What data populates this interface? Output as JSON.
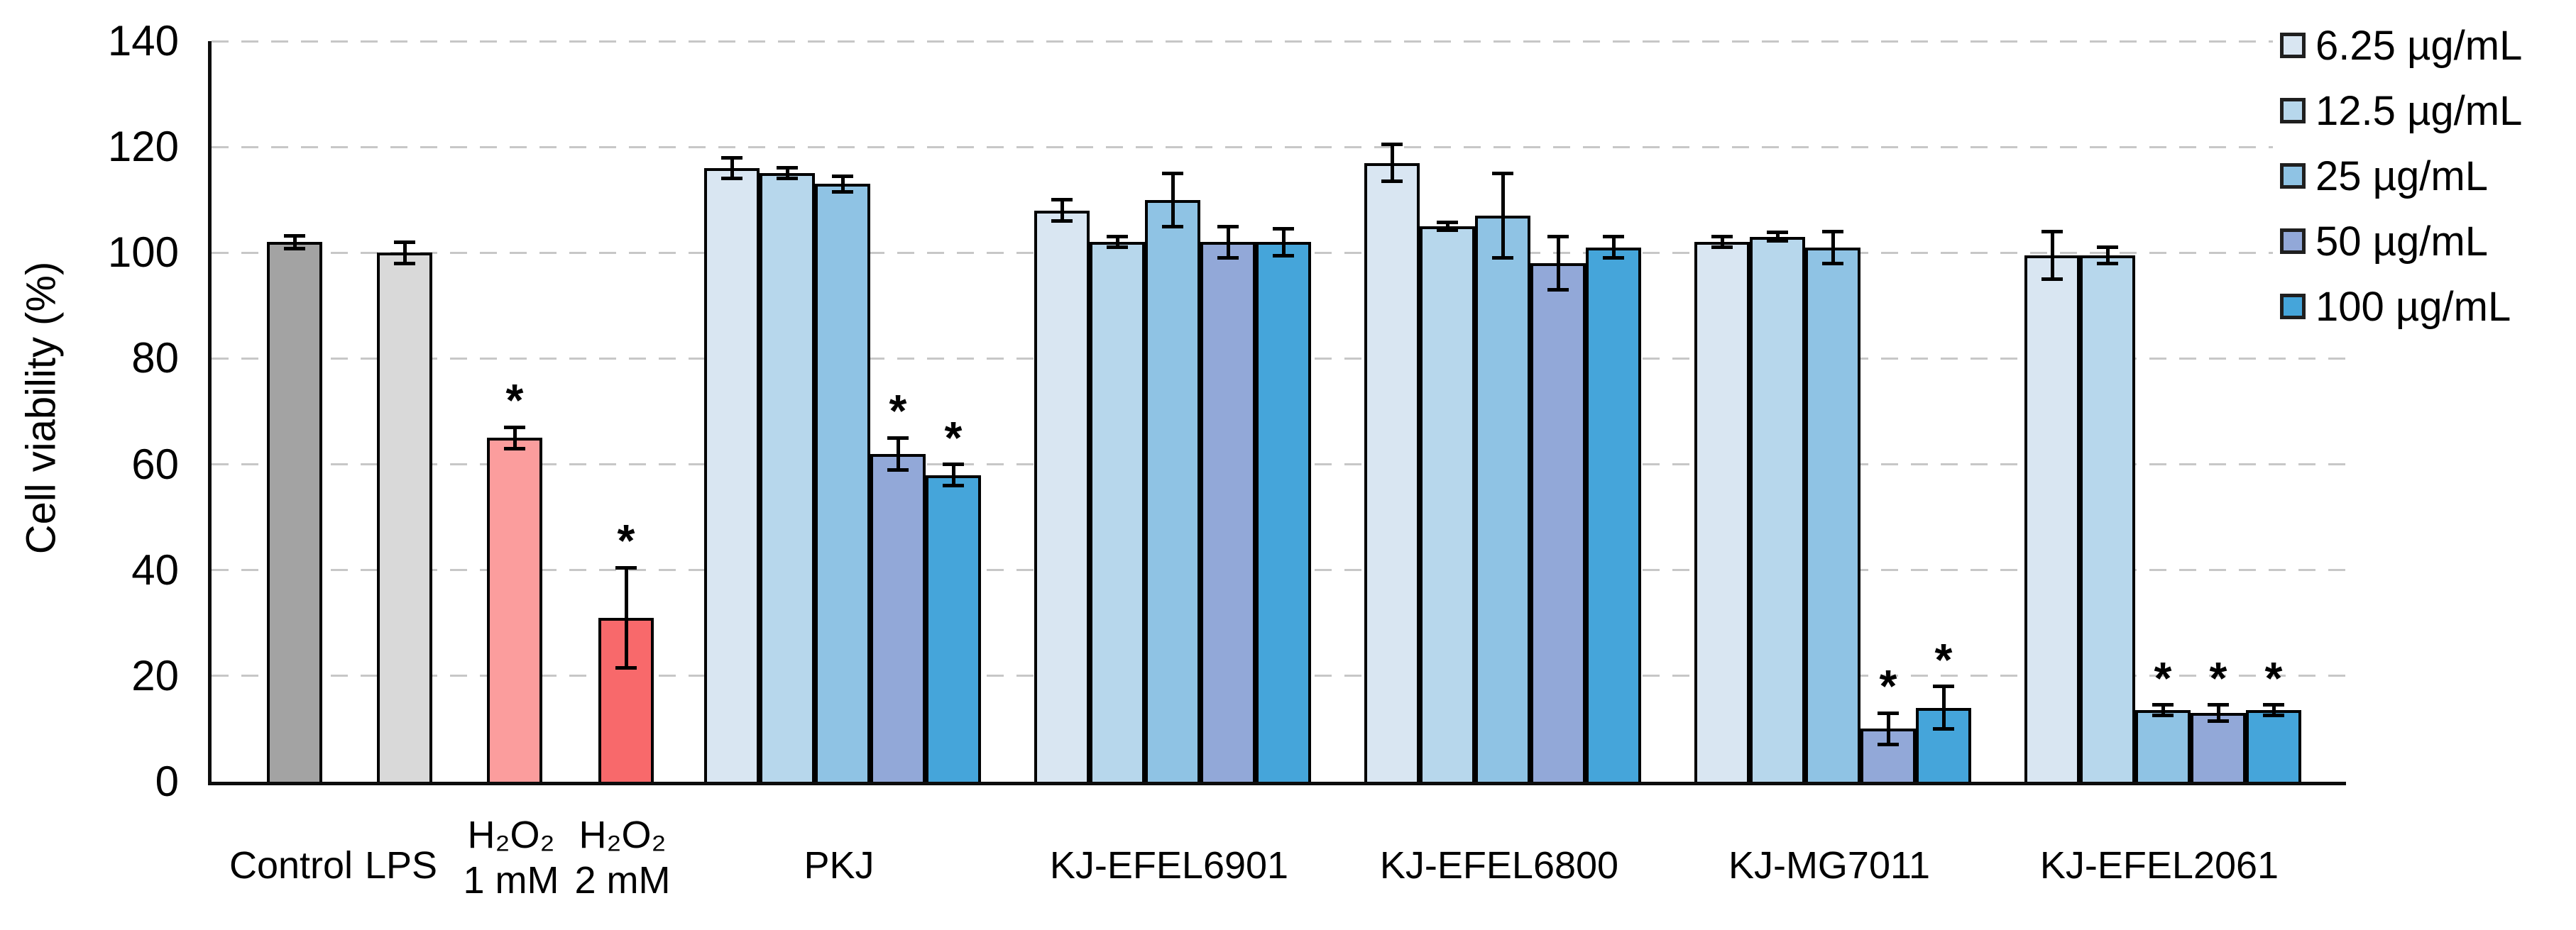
{
  "figure": {
    "background": "#ffffff"
  },
  "chart_data": {
    "type": "bar",
    "title": "",
    "xlabel": "",
    "ylabel": "Cell viability (%)",
    "ylim": [
      0,
      140
    ],
    "yticks": [
      0,
      20,
      40,
      60,
      80,
      100,
      120,
      140
    ],
    "grid": "horizontal-dashed",
    "gridline_color": "#c7c7c7",
    "legend_position": "top-right",
    "significance_marker": "*",
    "series": [
      {
        "name": "6.25 µg/mL",
        "color": "#d9e6f2"
      },
      {
        "name": "12.5 µg/mL",
        "color": "#b7d7ec"
      },
      {
        "name": "25 µg/mL",
        "color": "#8fc3e4"
      },
      {
        "name": "50 µg/mL",
        "color": "#92a8d8"
      },
      {
        "name": "100 µg/mL",
        "color": "#45a5da"
      }
    ],
    "groups": [
      {
        "label": "Control",
        "bars": [
          {
            "series": "Control",
            "value": 102,
            "error": 1.2,
            "significant": false,
            "color": "#a3a3a3"
          }
        ]
      },
      {
        "label": "LPS",
        "bars": [
          {
            "series": "LPS",
            "value": 100,
            "error": 2,
            "significant": false,
            "color": "#d9d9d9"
          }
        ]
      },
      {
        "label": "H₂O₂\n1 mM",
        "bars": [
          {
            "series": "H₂O₂ 1 mM",
            "value": 65,
            "error": 2,
            "significant": true,
            "color": "#fb9d9d"
          }
        ]
      },
      {
        "label": "H₂O₂\n2 mM",
        "bars": [
          {
            "series": "H₂O₂ 2 mM",
            "value": 31,
            "error": 9.5,
            "significant": true,
            "color": "#f8696b"
          }
        ]
      },
      {
        "label": "PKJ",
        "bars": [
          {
            "series": "6.25 µg/mL",
            "value": 116,
            "error": 2,
            "significant": false
          },
          {
            "series": "12.5 µg/mL",
            "value": 115,
            "error": 1,
            "significant": false
          },
          {
            "series": "25 µg/mL",
            "value": 113,
            "error": 1.5,
            "significant": false
          },
          {
            "series": "50 µg/mL",
            "value": 62,
            "error": 3,
            "significant": true
          },
          {
            "series": "100 µg/mL",
            "value": 58,
            "error": 2,
            "significant": true
          }
        ]
      },
      {
        "label": "KJ-EFEL6901",
        "bars": [
          {
            "series": "6.25 µg/mL",
            "value": 108,
            "error": 2,
            "significant": false
          },
          {
            "series": "12.5 µg/mL",
            "value": 102,
            "error": 1,
            "significant": false
          },
          {
            "series": "25 µg/mL",
            "value": 110,
            "error": 5,
            "significant": false
          },
          {
            "series": "50 µg/mL",
            "value": 102,
            "error": 3,
            "significant": false
          },
          {
            "series": "100 µg/mL",
            "value": 102,
            "error": 2.5,
            "significant": false
          }
        ]
      },
      {
        "label": "KJ-EFEL6800",
        "bars": [
          {
            "series": "6.25 µg/mL",
            "value": 117,
            "error": 3.5,
            "significant": false
          },
          {
            "series": "12.5 µg/mL",
            "value": 105,
            "error": 0.8,
            "significant": false
          },
          {
            "series": "25 µg/mL",
            "value": 107,
            "error": 8,
            "significant": false
          },
          {
            "series": "50 µg/mL",
            "value": 98,
            "error": 5,
            "significant": false
          },
          {
            "series": "100 µg/mL",
            "value": 101,
            "error": 2,
            "significant": false
          }
        ]
      },
      {
        "label": "KJ-MG7011",
        "bars": [
          {
            "series": "6.25 µg/mL",
            "value": 102,
            "error": 1,
            "significant": false
          },
          {
            "series": "12.5 µg/mL",
            "value": 103,
            "error": 0.8,
            "significant": false
          },
          {
            "series": "25 µg/mL",
            "value": 101,
            "error": 3,
            "significant": false
          },
          {
            "series": "50 µg/mL",
            "value": 10,
            "error": 3,
            "significant": true
          },
          {
            "series": "100 µg/mL",
            "value": 14,
            "error": 4,
            "significant": true
          }
        ]
      },
      {
        "label": "KJ-EFEL2061",
        "bars": [
          {
            "series": "6.25 µg/mL",
            "value": 99.5,
            "error": 4.5,
            "significant": false
          },
          {
            "series": "12.5 µg/mL",
            "value": 99.5,
            "error": 1.5,
            "significant": false
          },
          {
            "series": "25 µg/mL",
            "value": 13.5,
            "error": 1,
            "significant": true
          },
          {
            "series": "50 µg/mL",
            "value": 13,
            "error": 1.5,
            "significant": true
          },
          {
            "series": "100 µg/mL",
            "value": 13.5,
            "error": 1,
            "significant": true
          }
        ]
      }
    ]
  }
}
